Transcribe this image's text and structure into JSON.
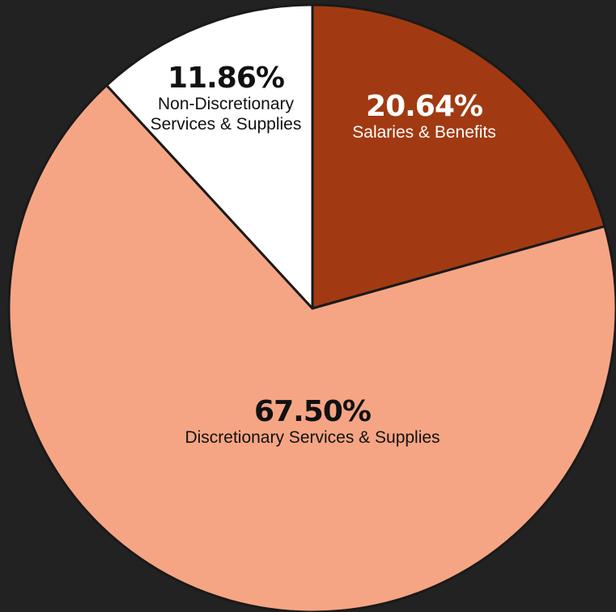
{
  "chart_data": {
    "type": "pie",
    "slices": [
      {
        "label": "Salaries & Benefits",
        "label_lines": [
          "Salaries & Benefits"
        ],
        "value": 20.64,
        "display": "20.64%",
        "color": "#A13A12",
        "text_color": "#FFFFFF"
      },
      {
        "label": "Discretionary Services & Supplies",
        "label_lines": [
          "Discretionary Services & Supplies"
        ],
        "value": 67.5,
        "display": "67.50%",
        "color": "#F5A584",
        "text_color": "#111111"
      },
      {
        "label": "Non-Discretionary Services & Supplies",
        "label_lines": [
          "Non-Discretionary",
          "Services & Supplies"
        ],
        "value": 11.86,
        "display": "11.86%",
        "color": "#FFFFFF",
        "text_color": "#111111"
      }
    ],
    "start": "12 o'clock",
    "direction": "clockwise",
    "border_color": "#1A1A1A",
    "background": "#222222"
  }
}
